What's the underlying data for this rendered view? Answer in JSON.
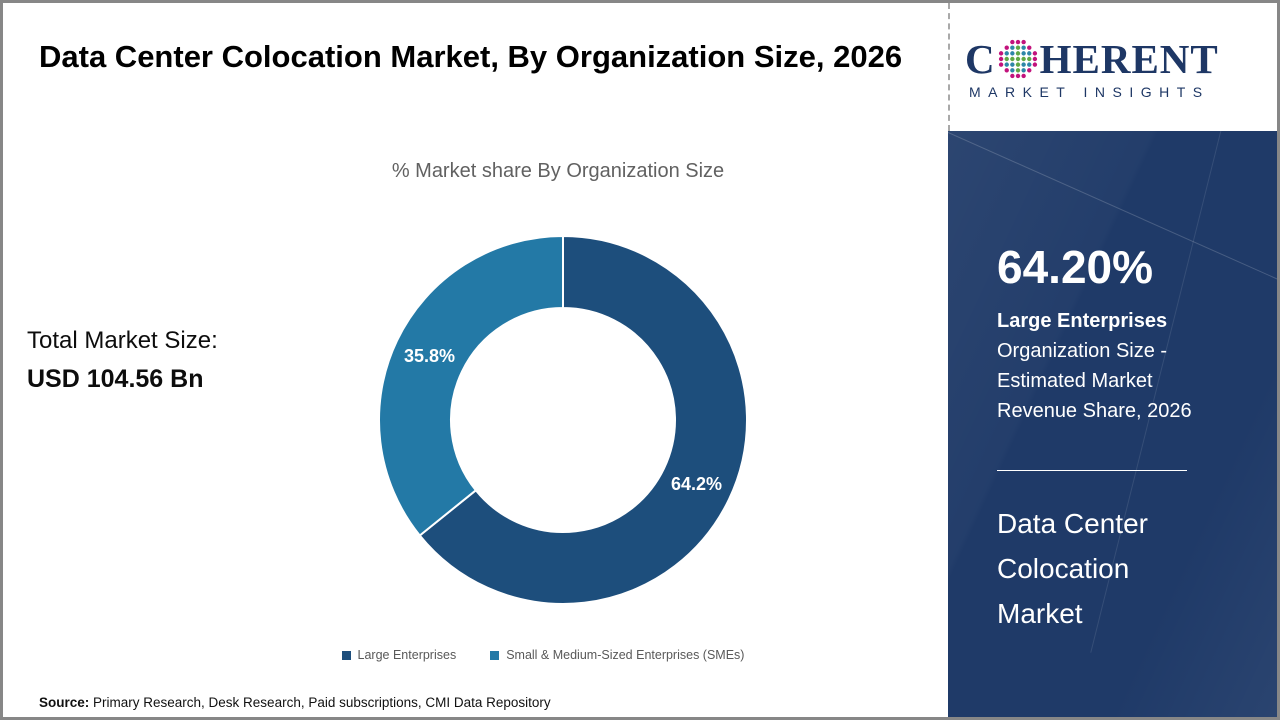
{
  "page": {
    "title": "Data Center Colocation Market, By Organization Size, 2026",
    "source_label": "Source:",
    "source_text": " Primary Research, Desk Research, Paid subscriptions, CMI Data Repository"
  },
  "left_panel": {
    "total_label": "Total Market Size:",
    "total_value": "USD 104.56 Bn"
  },
  "chart_data": {
    "type": "pie",
    "donut": true,
    "title": "% Market share By Organization Size",
    "categories": [
      "Large Enterprises",
      "Small & Medium-Sized Enterprises (SMEs)"
    ],
    "values": [
      64.2,
      35.8
    ],
    "labels": [
      "64.2%",
      "35.8%"
    ],
    "colors": [
      "#1D4E7C",
      "#2379A6"
    ],
    "start_angle_deg": 0,
    "direction": "clockwise",
    "legend_position": "bottom",
    "slice_separator_color": "#ffffff"
  },
  "sidebar": {
    "logo": {
      "brand_left": "C",
      "brand_right": "HERENT",
      "tagline": "MARKET INSIGHTS"
    },
    "stat_value": "64.20%",
    "stat_title": "Large Enterprises",
    "stat_desc_lines": [
      "Organization Size -",
      "Estimated Market",
      "Revenue Share, 2026"
    ],
    "market_name_lines": [
      "Data Center",
      "Colocation",
      "Market"
    ],
    "panel_color": "#1F3A68",
    "logo_color": "#1E3765"
  }
}
